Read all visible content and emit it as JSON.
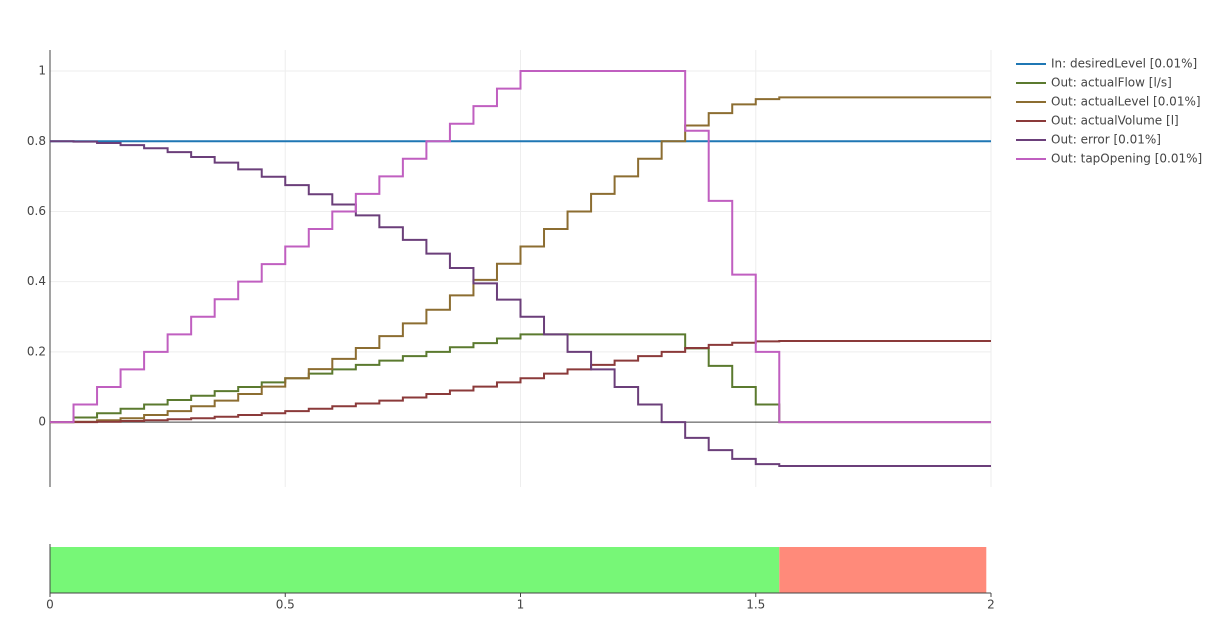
{
  "chart_data": [
    {
      "type": "step-line",
      "x": [
        0,
        0.05,
        0.1,
        0.15,
        0.2,
        0.25,
        0.3,
        0.35,
        0.4,
        0.45,
        0.5,
        0.55,
        0.6,
        0.65,
        0.7,
        0.75,
        0.8,
        0.85,
        0.9,
        0.95,
        1,
        1.05,
        1.1,
        1.15,
        1.2,
        1.25,
        1.3,
        1.35,
        1.4,
        1.45,
        1.5,
        1.55,
        1.6,
        1.65,
        1.7,
        1.75,
        1.8,
        1.85,
        1.9,
        1.95,
        2
      ],
      "series": [
        {
          "name": "In: desiredLevel [0.01%]",
          "color": "#1f77b4",
          "values": [
            0.8,
            0.8,
            0.8,
            0.8,
            0.8,
            0.8,
            0.8,
            0.8,
            0.8,
            0.8,
            0.8,
            0.8,
            0.8,
            0.8,
            0.8,
            0.8,
            0.8,
            0.8,
            0.8,
            0.8,
            0.8,
            0.8,
            0.8,
            0.8,
            0.8,
            0.8,
            0.8,
            0.8,
            0.8,
            0.8,
            0.8,
            0.8,
            0.8,
            0.8,
            0.8,
            0.8,
            0.8,
            0.8,
            0.8,
            0.8,
            0.8
          ]
        },
        {
          "name": "Out: actualFlow [l/s]",
          "color": "#5b7a2f",
          "values": [
            0,
            0.013,
            0.025,
            0.038,
            0.05,
            0.063,
            0.075,
            0.088,
            0.1,
            0.113,
            0.125,
            0.138,
            0.15,
            0.163,
            0.175,
            0.188,
            0.2,
            0.213,
            0.225,
            0.238,
            0.25,
            0.25,
            0.25,
            0.25,
            0.25,
            0.25,
            0.25,
            0.21,
            0.16,
            0.1,
            0.05,
            0,
            0,
            0,
            0,
            0,
            0,
            0,
            0,
            0,
            0
          ]
        },
        {
          "name": "Out: actualLevel [0.01%]",
          "color": "#8c6d31",
          "values": [
            0,
            0.001,
            0.005,
            0.011,
            0.02,
            0.031,
            0.045,
            0.061,
            0.08,
            0.101,
            0.125,
            0.151,
            0.18,
            0.211,
            0.245,
            0.281,
            0.32,
            0.361,
            0.405,
            0.451,
            0.5,
            0.55,
            0.6,
            0.65,
            0.7,
            0.75,
            0.8,
            0.845,
            0.88,
            0.905,
            0.92,
            0.925,
            0.925,
            0.925,
            0.925,
            0.925,
            0.925,
            0.925,
            0.925,
            0.925,
            0.925
          ]
        },
        {
          "name": "Out: actualVolume [l]",
          "color": "#8b3a3a",
          "values": [
            0,
            0,
            0.001,
            0.003,
            0.005,
            0.008,
            0.011,
            0.015,
            0.02,
            0.025,
            0.031,
            0.038,
            0.045,
            0.053,
            0.061,
            0.07,
            0.08,
            0.09,
            0.101,
            0.113,
            0.125,
            0.138,
            0.15,
            0.163,
            0.175,
            0.188,
            0.2,
            0.211,
            0.22,
            0.226,
            0.23,
            0.231,
            0.231,
            0.231,
            0.231,
            0.231,
            0.231,
            0.231,
            0.231,
            0.231,
            0.231
          ]
        },
        {
          "name": "Out: error [0.01%]",
          "color": "#6b3f7a",
          "values": [
            0.8,
            0.799,
            0.795,
            0.789,
            0.78,
            0.769,
            0.755,
            0.739,
            0.72,
            0.699,
            0.675,
            0.649,
            0.62,
            0.589,
            0.555,
            0.519,
            0.48,
            0.439,
            0.395,
            0.349,
            0.3,
            0.25,
            0.2,
            0.15,
            0.1,
            0.05,
            0,
            -0.045,
            -0.08,
            -0.105,
            -0.12,
            -0.125,
            -0.125,
            -0.125,
            -0.125,
            -0.125,
            -0.125,
            -0.125,
            -0.125,
            -0.125,
            -0.125
          ]
        },
        {
          "name": "Out: tapOpening [0.01%]",
          "color": "#c05fc0",
          "values": [
            0,
            0.05,
            0.1,
            0.15,
            0.2,
            0.25,
            0.3,
            0.35,
            0.4,
            0.45,
            0.5,
            0.55,
            0.6,
            0.65,
            0.7,
            0.75,
            0.8,
            0.85,
            0.9,
            0.95,
            1,
            1,
            1,
            1,
            1,
            1,
            1,
            0.83,
            0.63,
            0.42,
            0.2,
            0,
            0,
            0,
            0,
            0,
            0,
            0,
            0,
            0,
            0
          ]
        }
      ],
      "xlim": [
        0,
        2
      ],
      "xticks": [
        0,
        0.5,
        1,
        1.5,
        2
      ],
      "ylim": [
        -0.185,
        1.06
      ],
      "yticks": [
        0,
        0.2,
        0.4,
        0.6,
        0.8,
        1
      ],
      "grid": true,
      "legend": "right"
    },
    {
      "type": "timeline",
      "segments": [
        {
          "start": 0,
          "end": 1.55,
          "color": "#77f777"
        },
        {
          "start": 1.55,
          "end": 1.99,
          "color": "#ff8a7a"
        }
      ],
      "xlim": [
        0,
        2
      ],
      "xticks": [
        0,
        0.5,
        1,
        1.5,
        2
      ]
    }
  ]
}
